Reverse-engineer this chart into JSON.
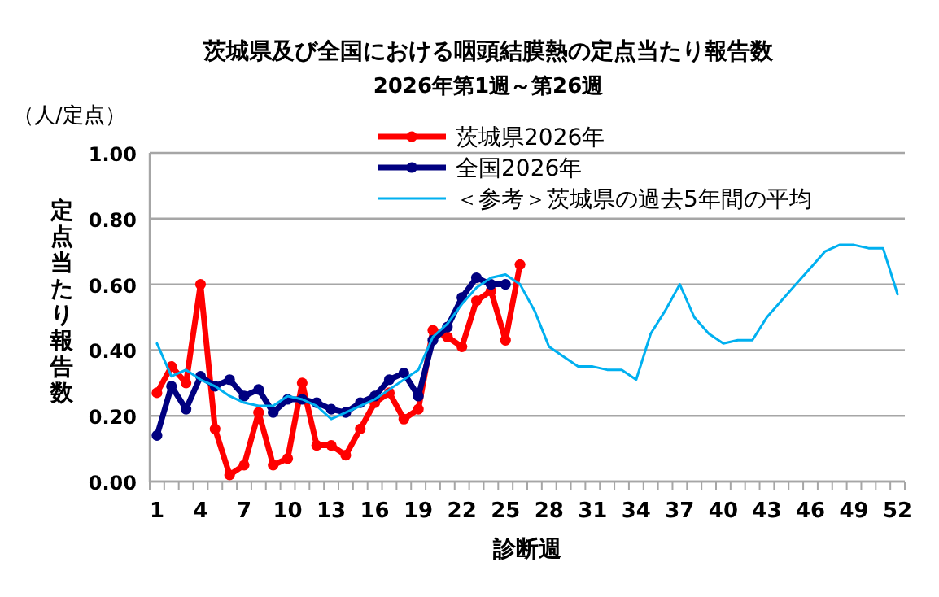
{
  "chart_data": {
    "type": "line",
    "title": "茨城県及び全国における咽頭結膜熱の定点当たり報告数",
    "subtitle": "2026年第1週～第26週",
    "xlabel": "診断週",
    "ylabel": "定点当たり報告数",
    "annotations": [
      "（人/定点）"
    ],
    "categories": [
      "1",
      null,
      null,
      "4",
      null,
      null,
      "7",
      null,
      null,
      "10",
      null,
      null,
      "13",
      null,
      null,
      "16",
      null,
      null,
      "19",
      null,
      null,
      "22",
      null,
      null,
      "25",
      null,
      null,
      "28",
      null,
      null,
      "31",
      null,
      null,
      "34",
      null,
      null,
      "37",
      null,
      null,
      "40",
      null,
      null,
      "43",
      null,
      null,
      "46",
      null,
      null,
      "49",
      null,
      null,
      "52"
    ],
    "ylim": [
      0,
      1
    ],
    "yticks": [
      {
        "value": 0,
        "label": "0.00"
      },
      {
        "value": 0.2,
        "label": "0.20"
      },
      {
        "value": 0.4,
        "label": "0.40"
      },
      {
        "value": 0.6,
        "label": "0.60"
      },
      {
        "value": 0.8,
        "label": "0.80"
      },
      {
        "value": 1,
        "label": "1.00"
      }
    ],
    "grid": "y",
    "legend": "top right",
    "line_style": "solid",
    "series": [
      {
        "name": "茨城県2026年",
        "color": "#ff0000",
        "marker": "circle",
        "values": [
          0.27,
          0.35,
          0.3,
          0.6,
          0.16,
          0.02,
          0.05,
          0.21,
          0.05,
          0.07,
          0.3,
          0.11,
          0.11,
          0.08,
          0.16,
          0.24,
          0.27,
          0.19,
          0.22,
          0.46,
          0.44,
          0.41,
          0.55,
          0.58,
          0.43,
          0.66,
          null,
          null,
          null,
          null,
          null,
          null,
          null,
          null,
          null,
          null,
          null,
          null,
          null,
          null,
          null,
          null,
          null,
          null,
          null,
          null,
          null,
          null,
          null,
          null,
          null,
          null
        ]
      },
      {
        "name": "全国2026年",
        "color": "#000080",
        "marker": "circle",
        "values": [
          0.14,
          0.29,
          0.22,
          0.32,
          0.29,
          0.31,
          0.26,
          0.28,
          0.21,
          0.25,
          0.25,
          0.24,
          0.22,
          0.21,
          0.24,
          0.26,
          0.31,
          0.33,
          0.26,
          0.43,
          0.47,
          0.56,
          0.62,
          0.6,
          0.6,
          null,
          null,
          null,
          null,
          null,
          null,
          null,
          null,
          null,
          null,
          null,
          null,
          null,
          null,
          null,
          null,
          null,
          null,
          null,
          null,
          null,
          null,
          null,
          null,
          null,
          null,
          null
        ]
      },
      {
        "name": "＜参考＞茨城県の過去5年間の平均",
        "color": "#00b0f0",
        "marker": "none",
        "values": [
          0.42,
          0.32,
          0.34,
          0.31,
          0.29,
          0.26,
          0.24,
          0.23,
          0.23,
          0.26,
          0.25,
          0.23,
          0.19,
          0.21,
          0.23,
          0.25,
          0.28,
          0.31,
          0.34,
          0.44,
          0.48,
          0.54,
          0.59,
          0.62,
          0.63,
          0.6,
          0.52,
          0.41,
          0.38,
          0.35,
          0.35,
          0.34,
          0.34,
          0.31,
          0.45,
          0.52,
          0.6,
          0.5,
          0.45,
          0.42,
          0.43,
          0.43,
          0.5,
          0.55,
          0.6,
          0.65,
          0.7,
          0.72,
          0.72,
          0.71,
          0.71,
          0.57
        ]
      }
    ]
  }
}
